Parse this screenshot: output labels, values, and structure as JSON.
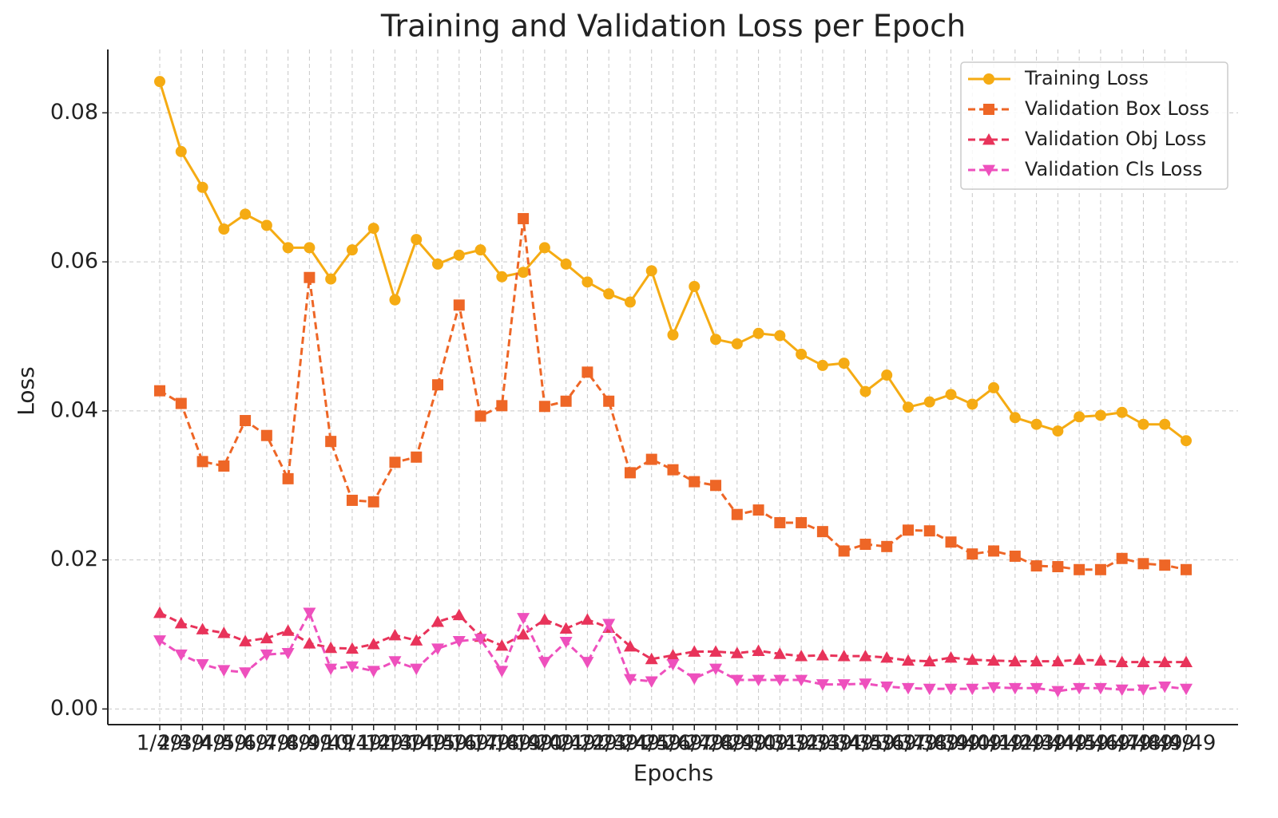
{
  "chart_data": {
    "type": "line",
    "title": "Training and Validation Loss per Epoch",
    "x_label": "Epochs",
    "y_label": "Loss",
    "categories": [
      "1/49",
      "2/49",
      "3/49",
      "4/49",
      "5/49",
      "6/49",
      "7/49",
      "8/49",
      "9/49",
      "10/49",
      "11/49",
      "12/49",
      "13/49",
      "14/49",
      "15/49",
      "16/49",
      "17/49",
      "18/49",
      "19/49",
      "20/49",
      "21/49",
      "22/49",
      "23/49",
      "24/49",
      "25/49",
      "26/49",
      "27/49",
      "28/49",
      "29/49",
      "30/49",
      "31/49",
      "32/49",
      "33/49",
      "34/49",
      "35/49",
      "36/49",
      "37/49",
      "38/49",
      "39/49",
      "40/49",
      "41/49",
      "42/49",
      "43/49",
      "44/49",
      "45/49",
      "46/49",
      "47/49",
      "48/49",
      "49/49"
    ],
    "series": [
      {
        "name": "Training Loss",
        "color": "#f5ab13",
        "marker": "circle",
        "linestyle": "solid",
        "values": [
          0.0842,
          0.0748,
          0.07,
          0.0644,
          0.0664,
          0.0649,
          0.0619,
          0.0619,
          0.0577,
          0.0616,
          0.0645,
          0.0549,
          0.063,
          0.0597,
          0.0609,
          0.0616,
          0.058,
          0.0586,
          0.0619,
          0.0597,
          0.0573,
          0.0557,
          0.0546,
          0.0588,
          0.0502,
          0.0567,
          0.0496,
          0.049,
          0.0504,
          0.0501,
          0.0476,
          0.0461,
          0.0464,
          0.0426,
          0.0448,
          0.0405,
          0.0412,
          0.0422,
          0.0409,
          0.0431,
          0.0391,
          0.0382,
          0.0373,
          0.0392,
          0.0394,
          0.0398,
          0.0382,
          0.0382,
          0.036
        ]
      },
      {
        "name": "Validation Box Loss",
        "color": "#ee6626",
        "marker": "square",
        "linestyle": "dashed",
        "values": [
          0.0427,
          0.041,
          0.0332,
          0.0326,
          0.0387,
          0.0367,
          0.0309,
          0.0579,
          0.0359,
          0.028,
          0.0278,
          0.0331,
          0.0338,
          0.0435,
          0.0542,
          0.0393,
          0.0407,
          0.0658,
          0.0406,
          0.0413,
          0.0452,
          0.0413,
          0.0317,
          0.0335,
          0.0321,
          0.0305,
          0.03,
          0.0261,
          0.0267,
          0.025,
          0.025,
          0.0238,
          0.0212,
          0.0221,
          0.0218,
          0.024,
          0.0239,
          0.0224,
          0.0208,
          0.0212,
          0.0205,
          0.0192,
          0.0191,
          0.0187,
          0.0187,
          0.0202,
          0.0195,
          0.0193,
          0.0187
        ]
      },
      {
        "name": "Validation Obj Loss",
        "color": "#e8335a",
        "marker": "triangle-up",
        "linestyle": "dashed",
        "values": [
          0.0129,
          0.0115,
          0.0107,
          0.0102,
          0.0091,
          0.0095,
          0.0105,
          0.0088,
          0.0082,
          0.0081,
          0.0087,
          0.0099,
          0.0092,
          0.0117,
          0.0126,
          0.0097,
          0.0085,
          0.01,
          0.012,
          0.0108,
          0.012,
          0.0109,
          0.0084,
          0.0067,
          0.0072,
          0.0077,
          0.0077,
          0.0075,
          0.0078,
          0.0074,
          0.0071,
          0.0072,
          0.0071,
          0.0071,
          0.0069,
          0.0065,
          0.0064,
          0.0069,
          0.0066,
          0.0065,
          0.0064,
          0.0064,
          0.0064,
          0.0066,
          0.0065,
          0.0063,
          0.0063,
          0.0063,
          0.0063
        ]
      },
      {
        "name": "Validation Cls Loss",
        "color": "#ee50bd",
        "marker": "triangle-down",
        "linestyle": "dashed",
        "values": [
          0.0092,
          0.0073,
          0.006,
          0.0052,
          0.0049,
          0.0073,
          0.0075,
          0.0129,
          0.0054,
          0.0057,
          0.0051,
          0.0064,
          0.0054,
          0.0081,
          0.0091,
          0.0094,
          0.0051,
          0.0122,
          0.0063,
          0.009,
          0.0063,
          0.0114,
          0.004,
          0.0037,
          0.006,
          0.0041,
          0.0054,
          0.0039,
          0.0039,
          0.0039,
          0.0039,
          0.0033,
          0.0033,
          0.0034,
          0.003,
          0.0028,
          0.0027,
          0.0027,
          0.0027,
          0.0029,
          0.0028,
          0.0028,
          0.0024,
          0.0028,
          0.0028,
          0.0026,
          0.0026,
          0.003,
          0.0027
        ]
      }
    ],
    "ylim": [
      -0.0021,
      0.0885
    ],
    "yticks": [
      {
        "value": 0,
        "label": "0.00"
      },
      {
        "value": 0.02,
        "label": "0.02"
      },
      {
        "value": 0.04,
        "label": "0.04"
      },
      {
        "value": 0.06,
        "label": "0.06"
      },
      {
        "value": 0.08,
        "label": "0.08"
      }
    ],
    "grid": true,
    "legend": "upper right"
  }
}
